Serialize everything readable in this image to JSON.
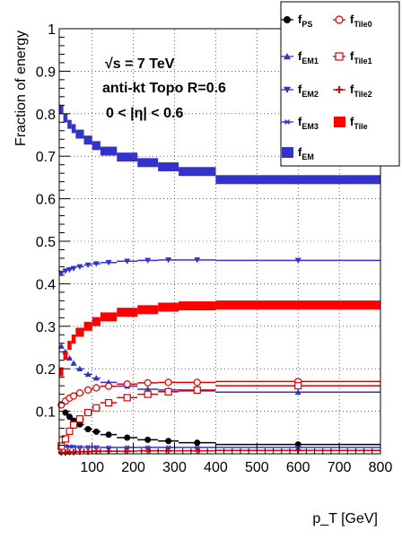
{
  "chart_data": {
    "type": "scatter",
    "xlabel": "p_T [GeV]",
    "ylabel": "Fraction of energy",
    "xlim": [
      20,
      800
    ],
    "ylim": [
      0,
      1
    ],
    "x_ticks": [
      100,
      200,
      300,
      400,
      500,
      600,
      700,
      800
    ],
    "y_ticks": [
      0,
      0.1,
      0.2,
      0.3,
      0.4,
      0.5,
      0.6,
      0.7,
      0.8,
      0.9,
      1
    ],
    "x_tick_labels": [
      "100",
      "200",
      "300",
      "400",
      "500",
      "600",
      "700",
      "800"
    ],
    "y_tick_labels": [
      "0.1",
      "0.2",
      "0.3",
      "0.4",
      "0.5",
      "0.6",
      "0.7",
      "0.8",
      "0.9",
      "1"
    ],
    "grid": true,
    "legend_position": "top-right",
    "annotations": [
      "√s = 7 TeV",
      "anti-kt Topo R=0.6",
      "0 < |η| < 0.6"
    ],
    "bins": [
      [
        20,
        30
      ],
      [
        30,
        40
      ],
      [
        40,
        50
      ],
      [
        50,
        60
      ],
      [
        60,
        80
      ],
      [
        80,
        100
      ],
      [
        100,
        120
      ],
      [
        120,
        160
      ],
      [
        160,
        210
      ],
      [
        210,
        260
      ],
      [
        260,
        310
      ],
      [
        310,
        400
      ],
      [
        400,
        800
      ]
    ],
    "series": [
      {
        "name": "f_PS",
        "color": "#000000",
        "marker": "circle-filled",
        "values": [
          0.115,
          0.097,
          0.087,
          0.078,
          0.069,
          0.058,
          0.052,
          0.045,
          0.038,
          0.033,
          0.03,
          0.026,
          0.022
        ]
      },
      {
        "name": "f_EM1",
        "color": "#3333cc",
        "marker": "triangle-up",
        "values": [
          0.253,
          0.24,
          0.225,
          0.213,
          0.2,
          0.187,
          0.178,
          0.168,
          0.159,
          0.152,
          0.15,
          0.148,
          0.145
        ]
      },
      {
        "name": "f_EM2",
        "color": "#3333cc",
        "marker": "triangle-down",
        "values": [
          0.425,
          0.43,
          0.433,
          0.436,
          0.44,
          0.444,
          0.447,
          0.45,
          0.453,
          0.455,
          0.456,
          0.456,
          0.455
        ]
      },
      {
        "name": "f_EM3",
        "color": "#3333cc",
        "marker": "star",
        "values": [
          0.018,
          0.018,
          0.017,
          0.017,
          0.016,
          0.016,
          0.016,
          0.015,
          0.015,
          0.015,
          0.015,
          0.015,
          0.015
        ]
      },
      {
        "name": "f_EM",
        "color": "#3333cc",
        "marker": "square-filled",
        "values": [
          0.81,
          0.79,
          0.775,
          0.765,
          0.752,
          0.738,
          0.725,
          0.712,
          0.698,
          0.685,
          0.675,
          0.664,
          0.645
        ]
      },
      {
        "name": "f_Tile0",
        "color": "#dd0000",
        "marker": "circle-open",
        "values": [
          0.115,
          0.124,
          0.131,
          0.136,
          0.143,
          0.15,
          0.155,
          0.159,
          0.164,
          0.167,
          0.168,
          0.168,
          0.17
        ]
      },
      {
        "name": "f_Tile1",
        "color": "#dd0000",
        "marker": "square-open",
        "values": [
          0.018,
          0.035,
          0.053,
          0.068,
          0.082,
          0.097,
          0.108,
          0.12,
          0.132,
          0.14,
          0.146,
          0.15,
          0.16
        ]
      },
      {
        "name": "f_Tile2",
        "color": "#dd0000",
        "marker": "cross",
        "values": [
          0.003,
          0.003,
          0.004,
          0.004,
          0.005,
          0.005,
          0.006,
          0.006,
          0.006,
          0.007,
          0.007,
          0.007,
          0.008
        ]
      },
      {
        "name": "f_Tile",
        "color": "#ff0000",
        "marker": "square-filled",
        "values": [
          0.193,
          0.232,
          0.255,
          0.27,
          0.286,
          0.3,
          0.311,
          0.322,
          0.333,
          0.339,
          0.345,
          0.348,
          0.35
        ]
      }
    ]
  },
  "legend": {
    "items": [
      {
        "name": "f",
        "sub": "PS"
      },
      {
        "name": "f",
        "sub": "Tile0"
      },
      {
        "name": "f",
        "sub": "EM1"
      },
      {
        "name": "f",
        "sub": "Tile1"
      },
      {
        "name": "f",
        "sub": "EM2"
      },
      {
        "name": "f",
        "sub": "Tile2"
      },
      {
        "name": "f",
        "sub": "EM3"
      },
      {
        "name": "f",
        "sub": "Tile"
      },
      {
        "name": "f",
        "sub": "EM"
      }
    ]
  }
}
